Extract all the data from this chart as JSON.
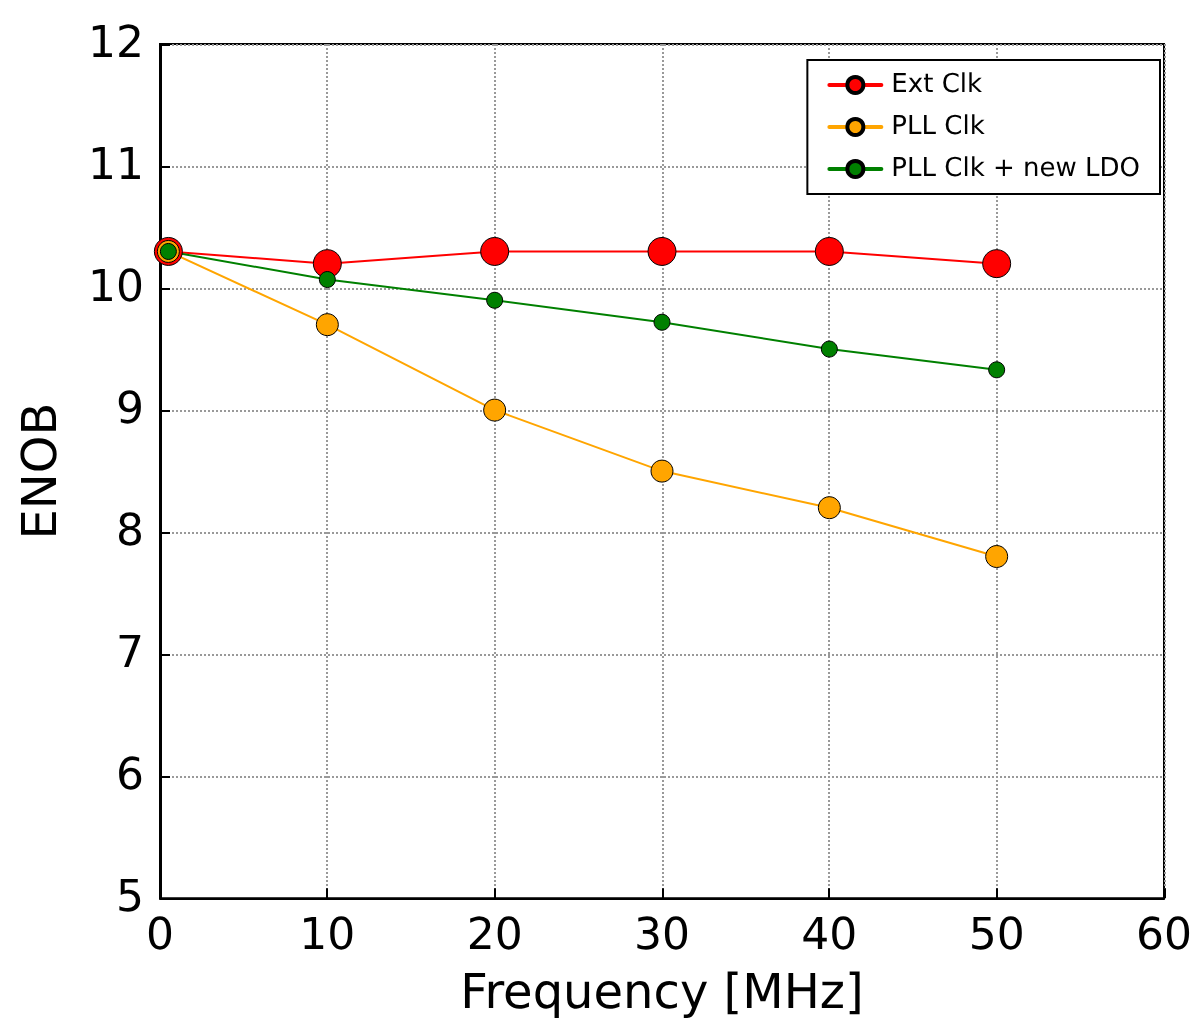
{
  "chart_data": {
    "type": "line",
    "xlabel": "Frequency [MHz]",
    "ylabel": "ENOB",
    "x": [
      0.5,
      10,
      20,
      30,
      40,
      50
    ],
    "series": [
      {
        "name": "Ext Clk",
        "color": "#ff0000",
        "values": [
          10.3,
          10.2,
          10.3,
          10.3,
          10.3,
          10.2
        ]
      },
      {
        "name": "PLL Clk",
        "color": "#ffa500",
        "values": [
          10.3,
          9.7,
          9.0,
          8.5,
          8.2,
          7.8
        ]
      },
      {
        "name": "PLL Clk + new LDO",
        "color": "#008000",
        "values": [
          10.3,
          10.07,
          9.9,
          9.72,
          9.5,
          9.33
        ]
      }
    ],
    "xlim": [
      0,
      60
    ],
    "xticks": [
      0,
      10,
      20,
      30,
      40,
      50,
      60
    ],
    "ylim": [
      5,
      12
    ],
    "yticks": [
      5,
      6,
      7,
      8,
      9,
      10,
      11,
      12
    ],
    "grid": true,
    "legend": "top right",
    "marker": "circle",
    "line_style": "solid"
  }
}
